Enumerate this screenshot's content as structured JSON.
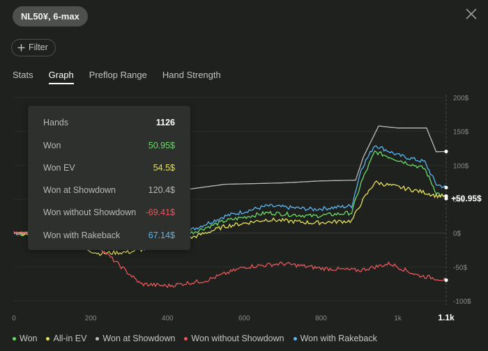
{
  "header": {
    "game_label": "NL50¥, 6-max"
  },
  "filter": {
    "label": "Filter"
  },
  "tabs": [
    {
      "label": "Stats",
      "active": false
    },
    {
      "label": "Graph",
      "active": true
    },
    {
      "label": "Preflop Range",
      "active": false
    },
    {
      "label": "Hand Strength",
      "active": false
    }
  ],
  "tooltip": {
    "rows": [
      {
        "label": "Hands",
        "value": "1126",
        "color": "#ffffff"
      },
      {
        "label": "Won",
        "value": "50.95$",
        "color": "#6cdc68"
      },
      {
        "label": "Won EV",
        "value": "54.5$",
        "color": "#e6e35a"
      },
      {
        "label": "Won at Showdown",
        "value": "120.4$",
        "color": "#b9b9b9"
      },
      {
        "label": "Won without Showdown",
        "value": "-69.41$",
        "color": "#e8585a"
      },
      {
        "label": "Won with Rakeback",
        "value": "67.14$",
        "color": "#5cb7f0"
      }
    ]
  },
  "legend": [
    {
      "label": "Won",
      "color": "#6cdc68"
    },
    {
      "label": "All-in EV",
      "color": "#e6e35a"
    },
    {
      "label": "Won at Showdown",
      "color": "#bdbdbd"
    },
    {
      "label": "Won without Showdown",
      "color": "#e8585a"
    },
    {
      "label": "Won with Rakeback",
      "color": "#5cb7f0"
    }
  ],
  "chart_data": {
    "type": "line",
    "x_ticks": [
      "0",
      "200",
      "400",
      "600",
      "800",
      "1k",
      "1.1k"
    ],
    "y_ticks": [
      "200$",
      "150$",
      "100$",
      "50$",
      "0$",
      "-50$",
      "-100$"
    ],
    "xlim": [
      0,
      1126
    ],
    "ylim": [
      -100,
      200
    ],
    "end_label": "+50.95$",
    "grid": true,
    "series": [
      {
        "name": "Won with Rakeback",
        "color": "#5cb7f0",
        "points": [
          [
            0,
            0
          ],
          [
            130,
            -5
          ],
          [
            220,
            -15
          ],
          [
            300,
            -12
          ],
          [
            420,
            -5
          ],
          [
            550,
            25
          ],
          [
            660,
            40
          ],
          [
            780,
            35
          ],
          [
            880,
            40
          ],
          [
            905,
            95
          ],
          [
            940,
            130
          ],
          [
            1000,
            115
          ],
          [
            1070,
            105
          ],
          [
            1100,
            72
          ],
          [
            1126,
            67.14
          ]
        ]
      },
      {
        "name": "Won",
        "color": "#6cdc68",
        "points": [
          [
            0,
            0
          ],
          [
            130,
            -8
          ],
          [
            220,
            -18
          ],
          [
            300,
            -18
          ],
          [
            420,
            -8
          ],
          [
            550,
            18
          ],
          [
            660,
            30
          ],
          [
            780,
            25
          ],
          [
            880,
            30
          ],
          [
            905,
            75
          ],
          [
            940,
            120
          ],
          [
            1000,
            108
          ],
          [
            1070,
            95
          ],
          [
            1100,
            60
          ],
          [
            1126,
            50.95
          ]
        ]
      },
      {
        "name": "All-in EV",
        "color": "#e6e35a",
        "points": [
          [
            0,
            0
          ],
          [
            130,
            -12
          ],
          [
            220,
            -30
          ],
          [
            300,
            -28
          ],
          [
            420,
            -15
          ],
          [
            550,
            10
          ],
          [
            660,
            20
          ],
          [
            780,
            15
          ],
          [
            880,
            18
          ],
          [
            905,
            45
          ],
          [
            940,
            75
          ],
          [
            1000,
            68
          ],
          [
            1070,
            60
          ],
          [
            1100,
            55
          ],
          [
            1126,
            54.5
          ]
        ]
      },
      {
        "name": "Won at Showdown",
        "color": "#bdbdbd",
        "points": [
          [
            0,
            0
          ],
          [
            130,
            5
          ],
          [
            180,
            20
          ],
          [
            250,
            40
          ],
          [
            420,
            62
          ],
          [
            550,
            72
          ],
          [
            700,
            74
          ],
          [
            800,
            77
          ],
          [
            890,
            78
          ],
          [
            910,
            112
          ],
          [
            950,
            158
          ],
          [
            1000,
            155
          ],
          [
            1075,
            155
          ],
          [
            1100,
            120
          ],
          [
            1126,
            120.4
          ]
        ]
      },
      {
        "name": "Won without Showdown",
        "color": "#e8585a",
        "points": [
          [
            0,
            0
          ],
          [
            110,
            -5
          ],
          [
            200,
            -10
          ],
          [
            260,
            -40
          ],
          [
            330,
            -75
          ],
          [
            400,
            -78
          ],
          [
            500,
            -70
          ],
          [
            600,
            -50
          ],
          [
            700,
            -45
          ],
          [
            800,
            -52
          ],
          [
            900,
            -55
          ],
          [
            980,
            -45
          ],
          [
            1050,
            -62
          ],
          [
            1126,
            -69.41
          ]
        ]
      }
    ]
  }
}
